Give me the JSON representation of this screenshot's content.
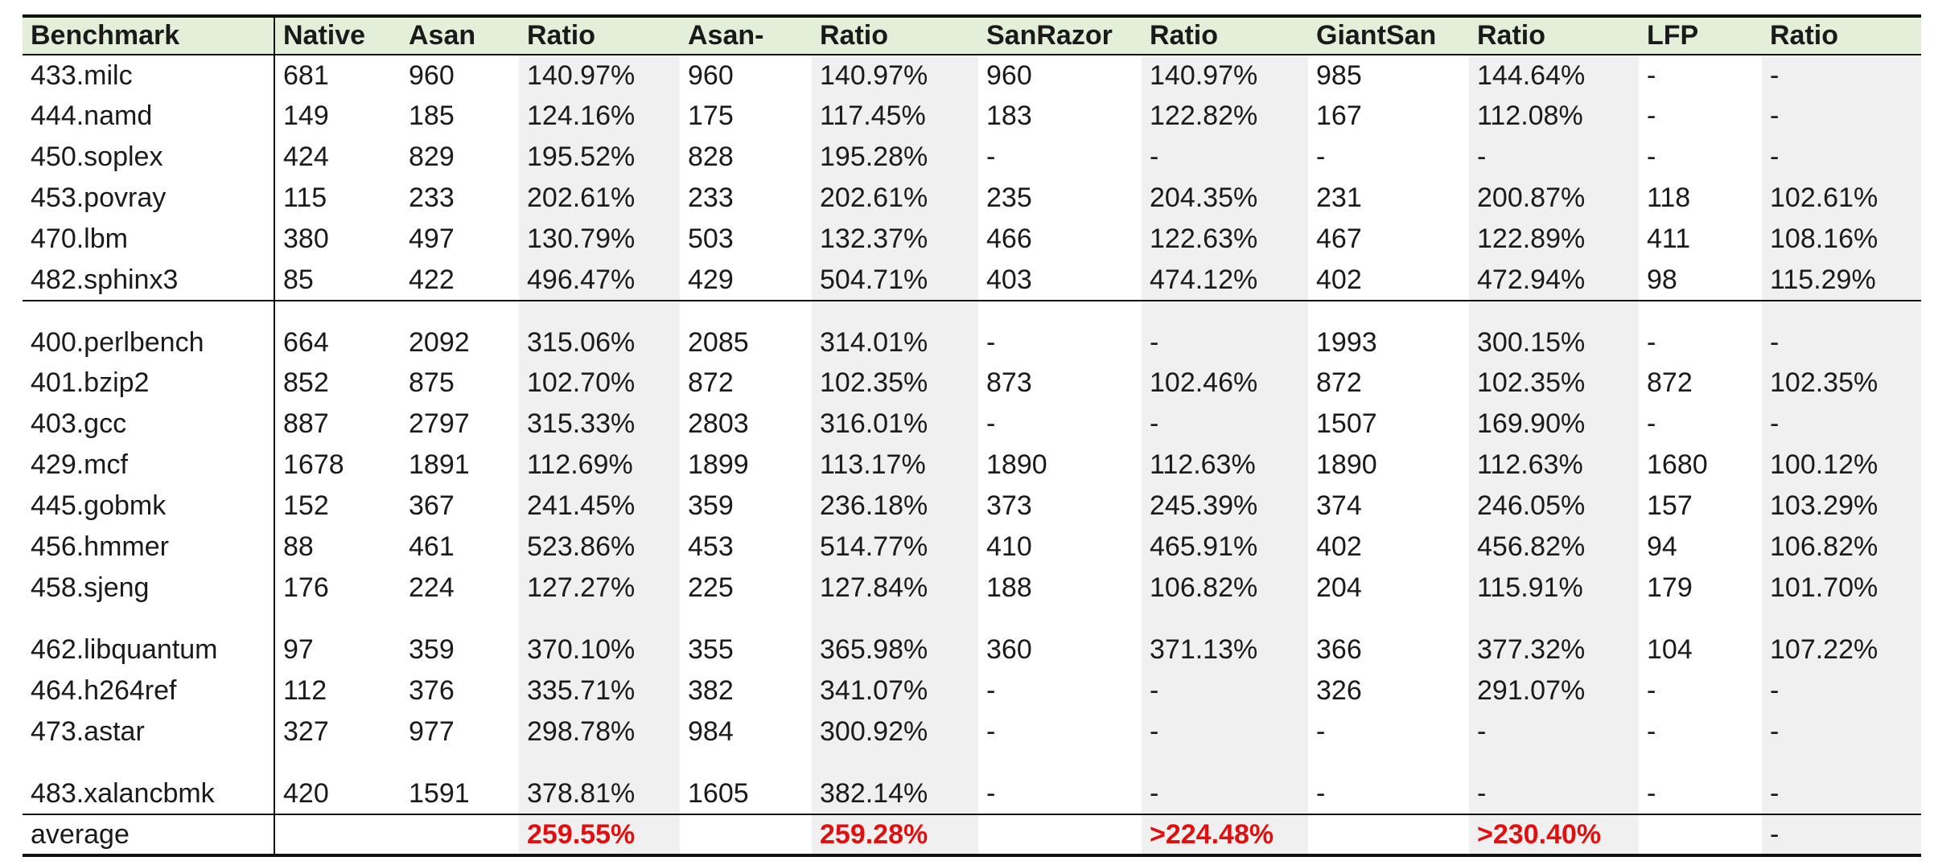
{
  "table": {
    "headers": [
      "Benchmark",
      "Native",
      "Asan",
      "Ratio",
      "Asan-",
      "Ratio",
      "SanRazor",
      "Ratio",
      "GiantSan",
      "Ratio",
      "LFP",
      "Ratio"
    ],
    "rows": [
      [
        "433.milc",
        "681",
        "960",
        "140.97%",
        "960",
        "140.97%",
        "960",
        "140.97%",
        "985",
        "144.64%",
        "-",
        "-"
      ],
      [
        "444.namd",
        "149",
        "185",
        "124.16%",
        "175",
        "117.45%",
        "183",
        "122.82%",
        "167",
        "112.08%",
        "-",
        "-"
      ],
      [
        "450.soplex",
        "424",
        "829",
        "195.52%",
        "828",
        "195.28%",
        "-",
        "-",
        "-",
        "-",
        "-",
        "-"
      ],
      [
        "453.povray",
        "115",
        "233",
        "202.61%",
        "233",
        "202.61%",
        "235",
        "204.35%",
        "231",
        "200.87%",
        "118",
        "102.61%"
      ],
      [
        "470.lbm",
        "380",
        "497",
        "130.79%",
        "503",
        "132.37%",
        "466",
        "122.63%",
        "467",
        "122.89%",
        "411",
        "108.16%"
      ],
      [
        "482.sphinx3",
        "85",
        "422",
        "496.47%",
        "429",
        "504.71%",
        "403",
        "474.12%",
        "402",
        "472.94%",
        "98",
        "115.29%"
      ],
      [
        "400.perlbench",
        "664",
        "2092",
        "315.06%",
        "2085",
        "314.01%",
        "-",
        "-",
        "1993",
        "300.15%",
        "-",
        "-"
      ],
      [
        "401.bzip2",
        "852",
        "875",
        "102.70%",
        "872",
        "102.35%",
        "873",
        "102.46%",
        "872",
        "102.35%",
        "872",
        "102.35%"
      ],
      [
        "403.gcc",
        "887",
        "2797",
        "315.33%",
        "2803",
        "316.01%",
        "-",
        "-",
        "1507",
        "169.90%",
        "-",
        "-"
      ],
      [
        "429.mcf",
        "1678",
        "1891",
        "112.69%",
        "1899",
        "113.17%",
        "1890",
        "112.63%",
        "1890",
        "112.63%",
        "1680",
        "100.12%"
      ],
      [
        "445.gobmk",
        "152",
        "367",
        "241.45%",
        "359",
        "236.18%",
        "373",
        "245.39%",
        "374",
        "246.05%",
        "157",
        "103.29%"
      ],
      [
        "456.hmmer",
        "88",
        "461",
        "523.86%",
        "453",
        "514.77%",
        "410",
        "465.91%",
        "402",
        "456.82%",
        "94",
        "106.82%"
      ],
      [
        "458.sjeng",
        "176",
        "224",
        "127.27%",
        "225",
        "127.84%",
        "188",
        "106.82%",
        "204",
        "115.91%",
        "179",
        "101.70%"
      ],
      [
        "462.libquantum",
        "97",
        "359",
        "370.10%",
        "355",
        "365.98%",
        "360",
        "371.13%",
        "366",
        "377.32%",
        "104",
        "107.22%"
      ],
      [
        "464.h264ref",
        "112",
        "376",
        "335.71%",
        "382",
        "341.07%",
        "-",
        "-",
        "326",
        "291.07%",
        "-",
        "-"
      ],
      [
        "473.astar",
        "327",
        "977",
        "298.78%",
        "984",
        "300.92%",
        "-",
        "-",
        "-",
        "-",
        "-",
        "-"
      ],
      [
        "483.xalancbmk",
        "420",
        "1591",
        "378.81%",
        "1605",
        "382.14%",
        "-",
        "-",
        "-",
        "-",
        "-",
        "-"
      ]
    ],
    "footer": [
      "average",
      "",
      "",
      "259.55%",
      "",
      "259.28%",
      "",
      ">224.48%",
      "",
      ">230.40%",
      "",
      "-"
    ],
    "colors": {
      "header_background": "#e3efd9",
      "ratio_column_shade": "#f0f0f0",
      "average_highlight": "#e01010"
    }
  }
}
